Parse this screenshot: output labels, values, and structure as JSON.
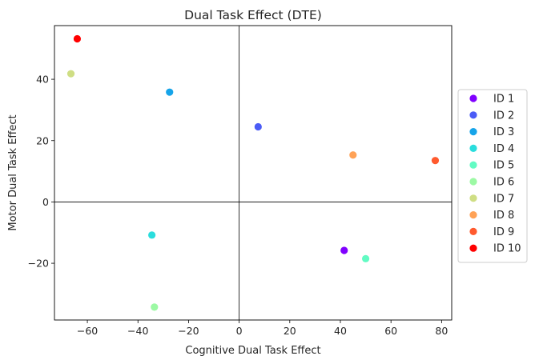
{
  "chart_data": {
    "type": "scatter",
    "title": "Dual Task Effect (DTE)",
    "xlabel": "Cognitive Dual Task Effect",
    "ylabel": "Motor Dual Task Effect",
    "xlim": [
      -73,
      84
    ],
    "ylim": [
      -38.5,
      57.5
    ],
    "xticks": [
      -60,
      -40,
      -20,
      0,
      20,
      40,
      60,
      80
    ],
    "yticks": [
      -20,
      0,
      20,
      40
    ],
    "reference_lines": {
      "x": 0,
      "y": 0
    },
    "grid": false,
    "legend_position": "right",
    "series": [
      {
        "name": "ID 1",
        "x": 41.5,
        "y": -15.8,
        "color": "#8000ff"
      },
      {
        "name": "ID 2",
        "x": 7.5,
        "y": 24.5,
        "color": "#4b5cf6"
      },
      {
        "name": "ID 3",
        "x": -27.5,
        "y": 35.8,
        "color": "#16a4e9"
      },
      {
        "name": "ID 4",
        "x": -34.5,
        "y": -10.8,
        "color": "#2adddd"
      },
      {
        "name": "ID 5",
        "x": 50.0,
        "y": -18.5,
        "color": "#62fbc3"
      },
      {
        "name": "ID 6",
        "x": -33.5,
        "y": -34.3,
        "color": "#9cf9a4"
      },
      {
        "name": "ID 7",
        "x": -66.5,
        "y": 41.8,
        "color": "#cfde84"
      },
      {
        "name": "ID 8",
        "x": 45.0,
        "y": 15.3,
        "color": "#ffa256"
      },
      {
        "name": "ID 9",
        "x": 77.5,
        "y": 13.5,
        "color": "#ff5a2e"
      },
      {
        "name": "ID 10",
        "x": -64.0,
        "y": 53.2,
        "color": "#ff0000"
      }
    ]
  }
}
